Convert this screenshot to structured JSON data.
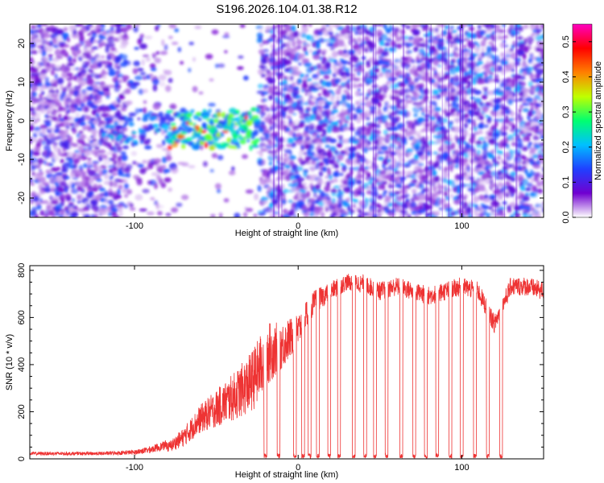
{
  "title": "S196.2026.104.01.38.R12",
  "chart_data": [
    {
      "type": "heatmap",
      "title": "S196.2026.104.01.38.R12",
      "xlabel": "Height of straight line (km)",
      "ylabel": "Frequency (Hz)",
      "xlim": [
        -164,
        150
      ],
      "ylim": [
        -25,
        25
      ],
      "xticks": [
        -100,
        0,
        100
      ],
      "yticks": [
        -20,
        -10,
        0,
        10,
        20
      ],
      "xtick_labels": [
        "-100",
        "0",
        "100"
      ],
      "ytick_labels": [
        "-20",
        "-10",
        "0",
        "10",
        "20"
      ],
      "colorbar": {
        "label": "Normalized spectral amplitude",
        "range": [
          0,
          0.55
        ],
        "ticks": [
          0.0,
          0.1,
          0.2,
          0.3,
          0.4,
          0.5
        ],
        "tick_labels": [
          "0.0",
          "0.1",
          "0.2",
          "0.3",
          "0.4",
          "0.5"
        ],
        "colors": [
          "#ffffff",
          "#7000d0",
          "#2040ff",
          "#00c0ff",
          "#00ff70",
          "#c0ff00",
          "#ff8000",
          "#ff0000",
          "#ff00c0"
        ]
      },
      "regions": [
        {
          "x_from": -164,
          "x_to": -25,
          "description": "noise",
          "max_amplitude": 0.15
        },
        {
          "x_from": -80,
          "x_to": -25,
          "description": "signal band",
          "freq_center": -2,
          "max_amplitude": 0.5
        },
        {
          "x_from": -25,
          "x_to": 150,
          "description": "noise",
          "max_amplitude": 0.2
        }
      ]
    },
    {
      "type": "line",
      "xlabel": "Height of straight line (km)",
      "ylabel": "SNR (10 * v/v)",
      "xlim": [
        -164,
        150
      ],
      "ylim": [
        0,
        820
      ],
      "xticks": [
        -100,
        0,
        100
      ],
      "yticks": [
        0,
        200,
        400,
        600,
        800
      ],
      "xtick_labels": [
        "-100",
        "0",
        "100"
      ],
      "ytick_labels": [
        "0",
        "200",
        "400",
        "600",
        "800"
      ],
      "color": "#ee3333",
      "series": [
        {
          "name": "SNR",
          "x": [
            -164,
            -140,
            -120,
            -100,
            -90,
            -80,
            -70,
            -60,
            -50,
            -40,
            -30,
            -25,
            -20,
            -10,
            0,
            5,
            10,
            20,
            30,
            40,
            50,
            60,
            70,
            80,
            90,
            100,
            110,
            120,
            130,
            140,
            150
          ],
          "base": [
            15,
            15,
            15,
            18,
            25,
            40,
            80,
            150,
            190,
            230,
            280,
            320,
            400,
            450,
            520,
            600,
            650,
            700,
            740,
            730,
            700,
            720,
            700,
            680,
            700,
            720,
            700,
            560,
            720,
            720,
            700
          ],
          "spread": [
            15,
            15,
            15,
            20,
            30,
            40,
            80,
            120,
            160,
            200,
            250,
            280,
            280,
            200,
            150,
            120,
            100,
            80,
            70,
            80,
            80,
            80,
            80,
            80,
            80,
            80,
            80,
            80,
            80,
            80,
            80
          ],
          "dropouts": [
            -20,
            -12,
            -2,
            3,
            7,
            12,
            19,
            25,
            34,
            41,
            47,
            54,
            63,
            71,
            78,
            85,
            93,
            100,
            108,
            116,
            124
          ]
        }
      ]
    }
  ]
}
